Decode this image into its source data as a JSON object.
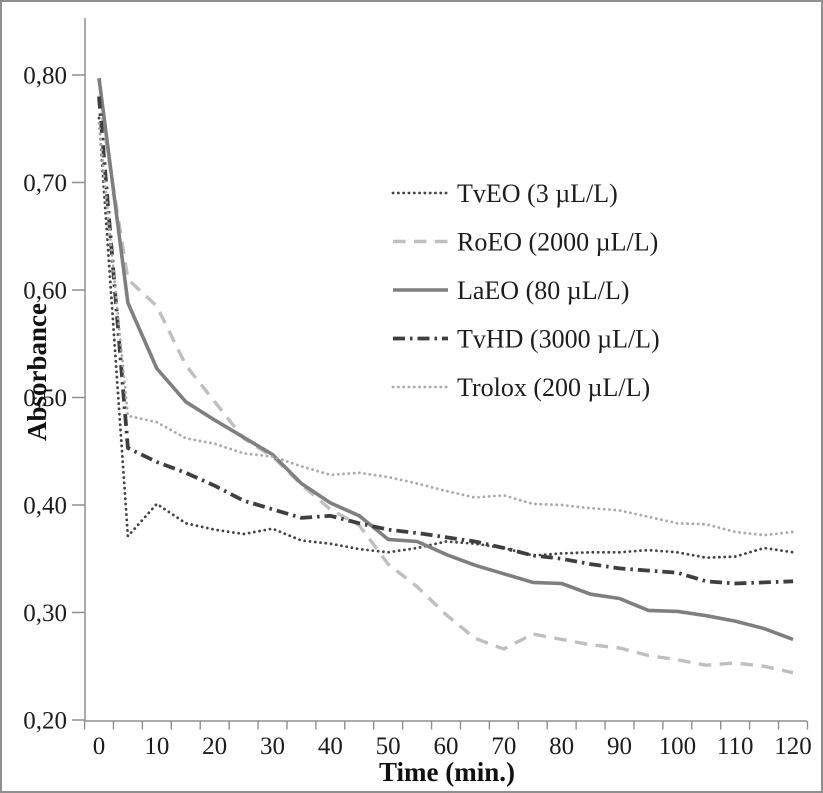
{
  "figure": {
    "background": "#ffffff",
    "border_color": "#8f8f8f",
    "axis_color": "#8f8f8f",
    "text_color": "#1c1c1c"
  },
  "chart_data": {
    "type": "line",
    "title": "",
    "xlabel": "Time (min.)",
    "ylabel": "Absorbance",
    "grid": false,
    "legend_position": "center-right-upper",
    "xlim": [
      0,
      120
    ],
    "ylim": [
      0.2,
      0.8
    ],
    "x_tick_values": [
      0,
      10,
      20,
      30,
      40,
      50,
      60,
      70,
      80,
      90,
      100,
      110,
      120
    ],
    "x_tick_labels": [
      "0",
      "10",
      "20",
      "30",
      "40",
      "50",
      "60",
      "70",
      "80",
      "90",
      "100",
      "110",
      "120"
    ],
    "x_minor_tick_interval": 5,
    "y_tick_values": [
      0.8,
      0.7,
      0.6,
      0.5,
      0.4,
      0.3,
      0.2
    ],
    "y_tick_labels": [
      "0,80",
      "0,70",
      "0,60",
      "0,50",
      "0,40",
      "0,30",
      "0,20"
    ],
    "decimal_separator": ",",
    "x": [
      0,
      5,
      10,
      15,
      20,
      25,
      30,
      35,
      40,
      45,
      50,
      55,
      60,
      65,
      70,
      75,
      80,
      85,
      90,
      95,
      100,
      105,
      110,
      115,
      120
    ],
    "series": [
      {
        "name": "TvEO (3 µL/L)",
        "style": "dotted",
        "color": "#444444",
        "width": 2.8,
        "values": [
          0.76,
          0.371,
          0.401,
          0.383,
          0.377,
          0.373,
          0.378,
          0.367,
          0.364,
          0.359,
          0.356,
          0.36,
          0.366,
          0.364,
          0.36,
          0.353,
          0.355,
          0.356,
          0.356,
          0.358,
          0.356,
          0.351,
          0.352,
          0.36,
          0.356
        ]
      },
      {
        "name": "RoEO (2000 µL/L)",
        "style": "dashed",
        "color": "#bfbfbf",
        "width": 3.4,
        "values": [
          0.78,
          0.61,
          0.585,
          0.53,
          0.496,
          0.462,
          0.445,
          0.419,
          0.396,
          0.381,
          0.345,
          0.324,
          0.298,
          0.276,
          0.266,
          0.28,
          0.275,
          0.27,
          0.267,
          0.26,
          0.256,
          0.251,
          0.253,
          0.25,
          0.244
        ]
      },
      {
        "name": "LaEO (80 µL/L)",
        "style": "solid",
        "color": "#7f7f7f",
        "width": 3.6,
        "values": [
          0.797,
          0.588,
          0.527,
          0.496,
          0.479,
          0.463,
          0.447,
          0.42,
          0.402,
          0.39,
          0.368,
          0.366,
          0.354,
          0.344,
          0.336,
          0.328,
          0.327,
          0.317,
          0.313,
          0.302,
          0.301,
          0.297,
          0.292,
          0.285,
          0.275
        ]
      },
      {
        "name": "TvHD (3000 µL/L)",
        "style": "dashdot",
        "color": "#3f3f3f",
        "width": 3.8,
        "values": [
          0.78,
          0.453,
          0.44,
          0.43,
          0.418,
          0.404,
          0.396,
          0.388,
          0.39,
          0.383,
          0.377,
          0.374,
          0.37,
          0.366,
          0.36,
          0.353,
          0.35,
          0.345,
          0.341,
          0.339,
          0.337,
          0.329,
          0.327,
          0.328,
          0.329
        ]
      },
      {
        "name": "Trolox (200 µL/L)",
        "style": "dotted",
        "color": "#a9a9a9",
        "width": 2.8,
        "values": [
          0.755,
          0.483,
          0.477,
          0.462,
          0.457,
          0.448,
          0.445,
          0.436,
          0.428,
          0.43,
          0.426,
          0.42,
          0.413,
          0.407,
          0.409,
          0.401,
          0.4,
          0.397,
          0.395,
          0.389,
          0.383,
          0.382,
          0.375,
          0.372,
          0.375
        ]
      }
    ]
  }
}
